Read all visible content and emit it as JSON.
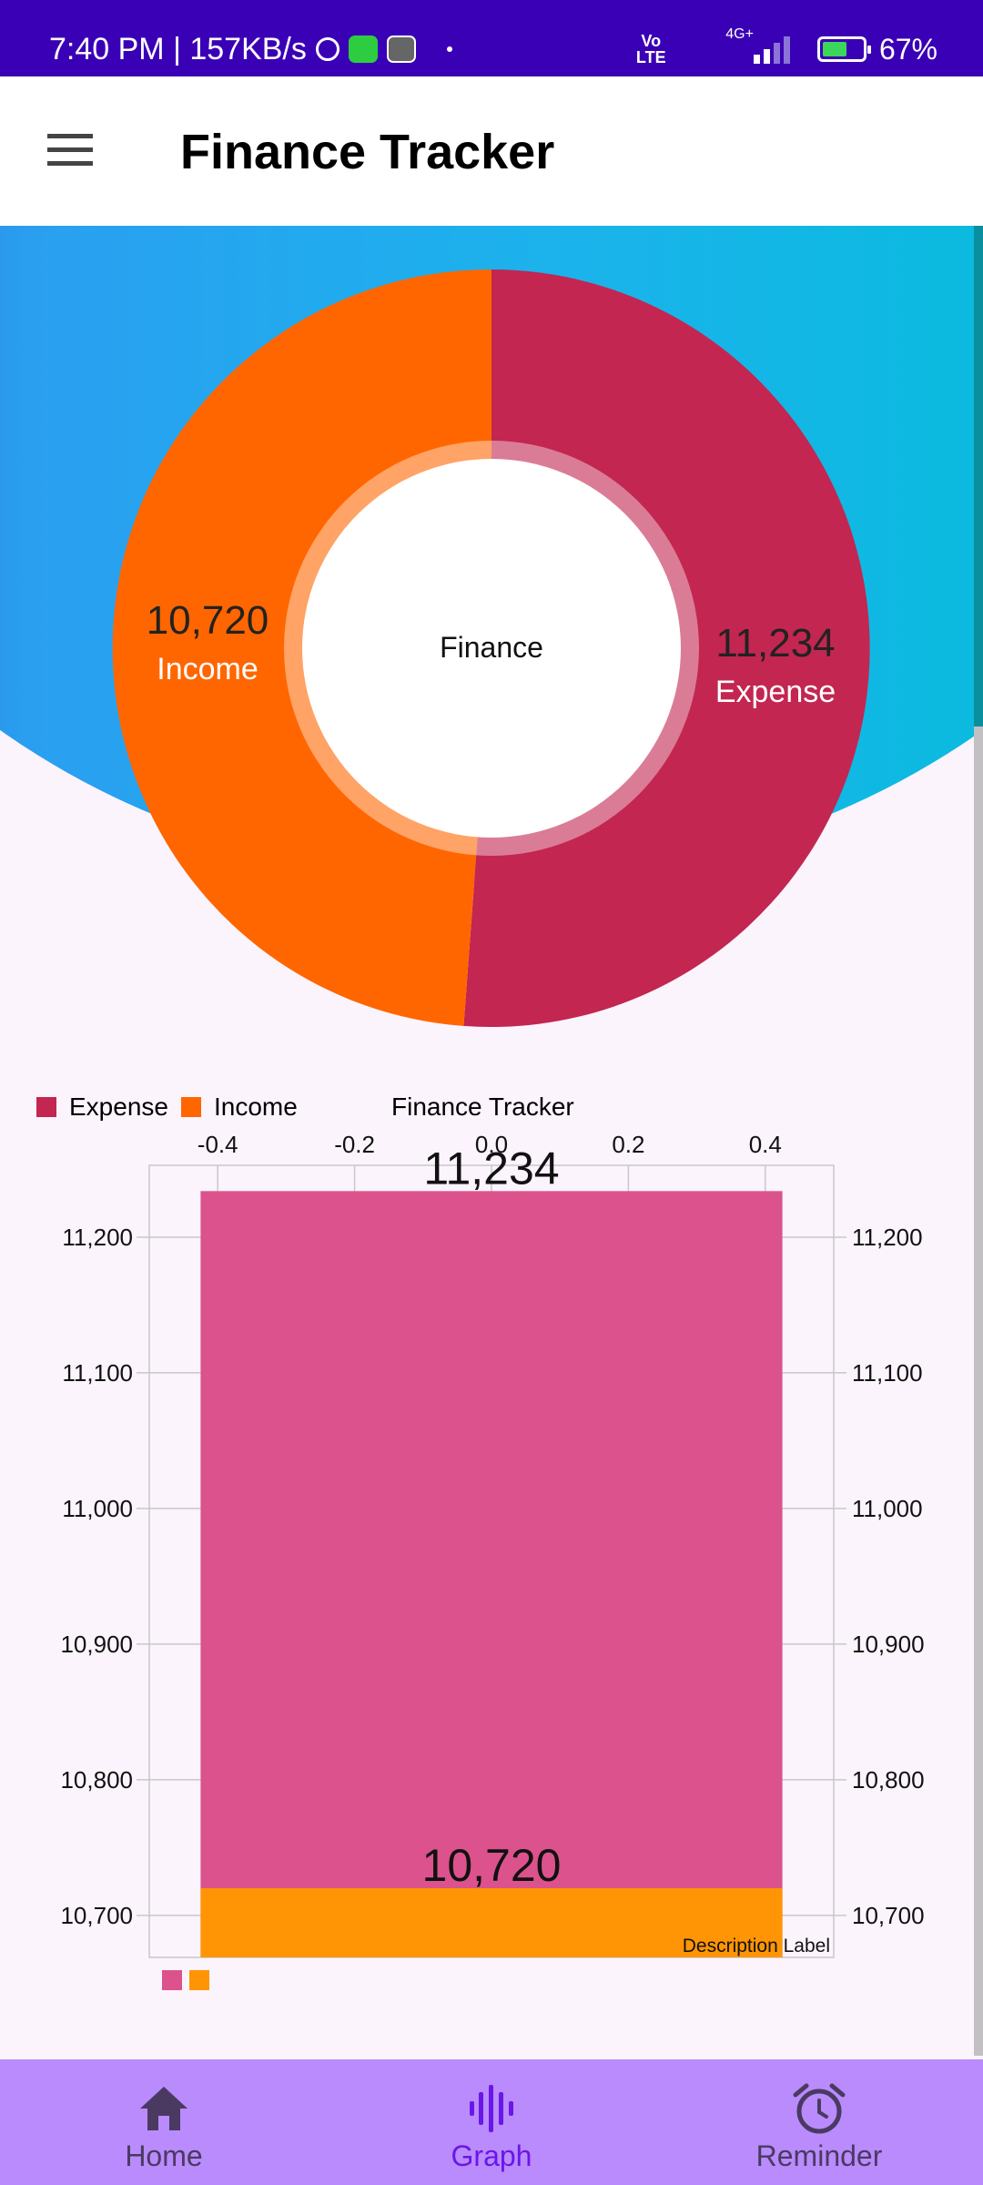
{
  "status_bar": {
    "time_speed": "7:40 PM | 157KB/s",
    "volte": "Vo LTE",
    "network": "4G+",
    "battery": "67%",
    "battery_level": 0.67,
    "icons": [
      "alarm-icon",
      "message-icon",
      "app-icon",
      "signal-icon",
      "battery-charging-icon"
    ]
  },
  "app_bar": {
    "title": "Finance Tracker",
    "menu_icon": "hamburger-menu-icon"
  },
  "donut": {
    "center_text": "Finance",
    "income": {
      "value": "10,720",
      "label": "Income",
      "color": "#ff6600"
    },
    "expense": {
      "value": "11,234",
      "label": "Expense",
      "color": "#c32651"
    }
  },
  "legend": {
    "items": [
      {
        "label": "Expense",
        "color": "#c32651"
      },
      {
        "label": "Income",
        "color": "#ff6600"
      }
    ]
  },
  "chart_title": "Finance Tracker",
  "chart_data": {
    "type": "bar",
    "title": "Finance Tracker",
    "description": "Description Label",
    "x_ticks": [
      "-0.4",
      "-0.2",
      "0.0",
      "0.2",
      "0.4"
    ],
    "xlim": [
      -0.5,
      0.5
    ],
    "y_ticks": [
      "10,700",
      "10,800",
      "10,900",
      "11,000",
      "11,100",
      "11,200"
    ],
    "ylim": [
      10669,
      11253
    ],
    "grid": true,
    "legend": "bottom-left",
    "series": [
      {
        "name": "Expense",
        "x": 0.0,
        "value": 11234,
        "value_label": "11,234",
        "color": "#dc528c"
      },
      {
        "name": "Income",
        "x": 0.0,
        "value": 10720,
        "value_label": "10,720",
        "color": "#ff9505"
      }
    ]
  },
  "bottom_nav": {
    "items": [
      {
        "label": "Home",
        "icon": "home-icon",
        "active": false
      },
      {
        "label": "Graph",
        "icon": "graph-icon",
        "active": true
      },
      {
        "label": "Reminder",
        "icon": "alarm-clock-icon",
        "active": false
      }
    ]
  }
}
